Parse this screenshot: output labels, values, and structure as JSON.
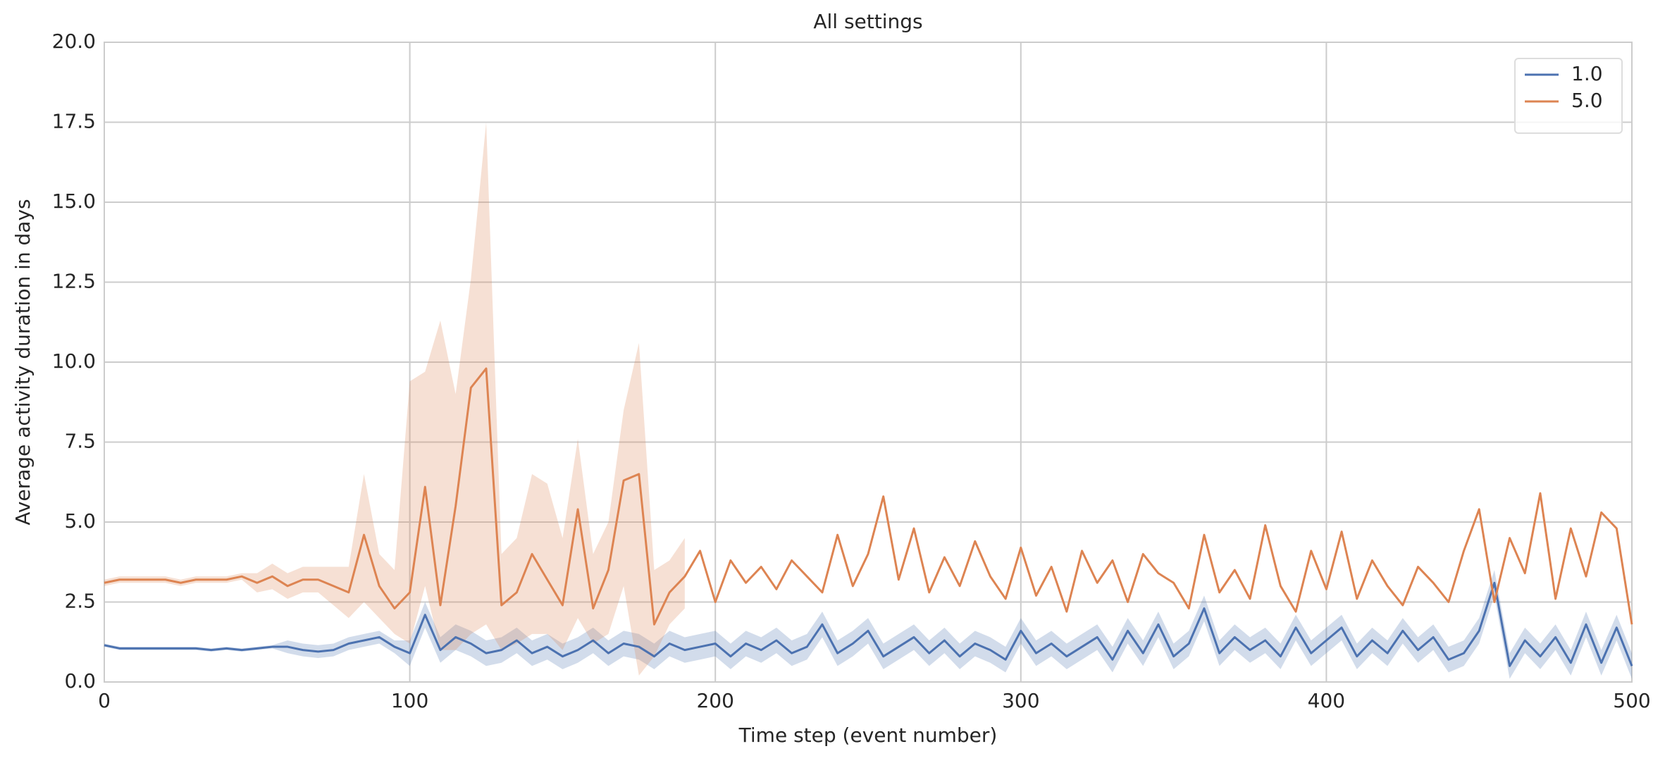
{
  "chart_data": {
    "type": "line",
    "title": "All settings",
    "x_label": "Time step (event number)",
    "y_label": "Average activity duration in days",
    "xlim": [
      0,
      500
    ],
    "xticks": [
      0,
      100,
      200,
      300,
      400,
      500
    ],
    "ylim": [
      0,
      20
    ],
    "yticks": [
      {
        "value": 0,
        "label": "0.0"
      },
      2.5,
      {
        "value": 5,
        "label": "5.0"
      },
      7.5,
      {
        "value": 10,
        "label": "10.0"
      },
      12.5,
      {
        "value": 15,
        "label": "15.0"
      },
      17.5,
      {
        "value": 20,
        "label": "20.0"
      }
    ],
    "grid": true,
    "legend": "upper right",
    "x": [
      0,
      5,
      10,
      15,
      20,
      25,
      30,
      35,
      40,
      45,
      50,
      55,
      60,
      65,
      70,
      75,
      80,
      85,
      90,
      95,
      100,
      105,
      110,
      115,
      120,
      125,
      130,
      135,
      140,
      145,
      150,
      155,
      160,
      165,
      170,
      175,
      180,
      185,
      190,
      195,
      200,
      205,
      210,
      215,
      220,
      225,
      230,
      235,
      240,
      245,
      250,
      255,
      260,
      265,
      270,
      275,
      280,
      285,
      290,
      295,
      300,
      305,
      310,
      315,
      320,
      325,
      330,
      335,
      340,
      345,
      350,
      355,
      360,
      365,
      370,
      375,
      380,
      385,
      390,
      395,
      400,
      405,
      410,
      415,
      420,
      425,
      430,
      435,
      440,
      445,
      450,
      455,
      460,
      465,
      470,
      475,
      480,
      485,
      490,
      495,
      500
    ],
    "series": [
      {
        "name": "1.0",
        "color": "#4c72b0",
        "values": [
          1.15,
          1.05,
          1.05,
          1.05,
          1.05,
          1.05,
          1.05,
          1.0,
          1.05,
          1.0,
          1.05,
          1.1,
          1.1,
          1.0,
          0.95,
          1.0,
          1.2,
          1.3,
          1.4,
          1.1,
          0.9,
          2.1,
          1.0,
          1.4,
          1.2,
          0.9,
          1.0,
          1.3,
          0.9,
          1.1,
          0.8,
          1.0,
          1.3,
          0.9,
          1.2,
          1.1,
          0.8,
          1.2,
          1.0,
          1.1,
          1.2,
          0.8,
          1.2,
          1.0,
          1.3,
          0.9,
          1.1,
          1.8,
          0.9,
          1.2,
          1.6,
          0.8,
          1.1,
          1.4,
          0.9,
          1.3,
          0.8,
          1.2,
          1.0,
          0.7,
          1.6,
          0.9,
          1.2,
          0.8,
          1.1,
          1.4,
          0.7,
          1.6,
          0.9,
          1.8,
          0.8,
          1.2,
          2.3,
          0.9,
          1.4,
          1.0,
          1.3,
          0.8,
          1.7,
          0.9,
          1.3,
          1.7,
          0.8,
          1.3,
          0.9,
          1.6,
          1.0,
          1.4,
          0.7,
          0.9,
          1.6,
          3.1,
          0.5,
          1.3,
          0.8,
          1.4,
          0.6,
          1.8,
          0.6,
          1.7,
          0.5
        ],
        "lower": [
          1.1,
          1.0,
          1.0,
          1.0,
          1.0,
          1.0,
          1.0,
          0.95,
          1.0,
          0.95,
          1.0,
          1.05,
          0.9,
          0.8,
          0.75,
          0.8,
          1.0,
          1.1,
          1.2,
          0.9,
          0.5,
          1.7,
          0.6,
          1.0,
          0.8,
          0.5,
          0.6,
          0.9,
          0.5,
          0.7,
          0.4,
          0.6,
          0.9,
          0.5,
          0.8,
          0.7,
          0.4,
          0.8,
          0.6,
          0.7,
          0.8,
          0.4,
          0.8,
          0.6,
          0.9,
          0.5,
          0.7,
          1.4,
          0.5,
          0.8,
          1.2,
          0.4,
          0.7,
          1.0,
          0.5,
          0.9,
          0.4,
          0.8,
          0.6,
          0.3,
          1.2,
          0.5,
          0.8,
          0.4,
          0.7,
          1.0,
          0.3,
          1.2,
          0.5,
          1.4,
          0.4,
          0.8,
          1.9,
          0.5,
          1.0,
          0.6,
          0.9,
          0.4,
          1.3,
          0.5,
          0.9,
          1.3,
          0.4,
          0.9,
          0.5,
          1.2,
          0.6,
          1.0,
          0.3,
          0.5,
          1.2,
          2.7,
          0.1,
          0.9,
          0.4,
          1.0,
          0.2,
          1.4,
          0.2,
          1.3,
          0.1
        ],
        "upper": [
          1.2,
          1.1,
          1.1,
          1.1,
          1.1,
          1.1,
          1.1,
          1.05,
          1.1,
          1.05,
          1.1,
          1.15,
          1.3,
          1.2,
          1.15,
          1.2,
          1.4,
          1.5,
          1.6,
          1.3,
          1.3,
          2.5,
          1.4,
          1.8,
          1.6,
          1.3,
          1.4,
          1.7,
          1.3,
          1.5,
          1.2,
          1.4,
          1.7,
          1.3,
          1.6,
          1.5,
          1.2,
          1.6,
          1.4,
          1.5,
          1.6,
          1.2,
          1.6,
          1.4,
          1.7,
          1.3,
          1.5,
          2.2,
          1.3,
          1.6,
          2.0,
          1.2,
          1.5,
          1.8,
          1.3,
          1.7,
          1.2,
          1.6,
          1.4,
          1.1,
          2.0,
          1.3,
          1.6,
          1.2,
          1.5,
          1.8,
          1.1,
          2.0,
          1.3,
          2.2,
          1.2,
          1.6,
          2.7,
          1.3,
          1.8,
          1.4,
          1.7,
          1.2,
          2.1,
          1.3,
          1.7,
          2.1,
          1.2,
          1.7,
          1.3,
          2.0,
          1.4,
          1.8,
          1.1,
          1.3,
          2.0,
          3.5,
          0.9,
          1.7,
          1.2,
          1.8,
          1.0,
          2.2,
          1.0,
          2.1,
          0.9
        ]
      },
      {
        "name": "5.0",
        "color": "#dd8452",
        "values": [
          3.1,
          3.2,
          3.2,
          3.2,
          3.2,
          3.1,
          3.2,
          3.2,
          3.2,
          3.3,
          3.1,
          3.3,
          3.0,
          3.2,
          3.2,
          3.0,
          2.8,
          4.6,
          3.0,
          2.3,
          2.8,
          6.1,
          2.4,
          5.5,
          9.2,
          9.8,
          2.4,
          2.8,
          4.0,
          3.2,
          2.4,
          5.4,
          2.3,
          3.5,
          6.3,
          6.5,
          1.8,
          2.8,
          3.3,
          4.1,
          2.5,
          3.8,
          3.1,
          3.6,
          2.9,
          3.8,
          3.3,
          2.8,
          4.6,
          3.0,
          4.0,
          5.8,
          3.2,
          4.8,
          2.8,
          3.9,
          3.0,
          4.4,
          3.3,
          2.6,
          4.2,
          2.7,
          3.6,
          2.2,
          4.1,
          3.1,
          3.8,
          2.5,
          4.0,
          3.4,
          3.1,
          2.3,
          4.6,
          2.8,
          3.5,
          2.6,
          4.9,
          3.0,
          2.2,
          4.1,
          2.9,
          4.7,
          2.6,
          3.8,
          3.0,
          2.4,
          3.6,
          3.1,
          2.5,
          4.1,
          5.4,
          2.5,
          4.5,
          3.4,
          5.9,
          2.6,
          4.8,
          3.3,
          5.3,
          4.8,
          1.8
        ],
        "lower": [
          3.0,
          3.1,
          3.1,
          3.1,
          3.1,
          3.0,
          3.1,
          3.1,
          3.1,
          3.2,
          2.8,
          2.9,
          2.6,
          2.8,
          2.8,
          2.4,
          2.0,
          2.5,
          2.0,
          1.5,
          1.2,
          3.0,
          1.0,
          1.0,
          1.5,
          1.8,
          1.0,
          1.2,
          1.5,
          1.5,
          1.0,
          2.0,
          1.2,
          1.5,
          3.0,
          0.2,
          0.8,
          1.8,
          2.3,
          null,
          null,
          null,
          null,
          null,
          null,
          null,
          null,
          null,
          null,
          null,
          null,
          null,
          null,
          null,
          null,
          null,
          null,
          null,
          null,
          null,
          null,
          null,
          null,
          null,
          null,
          null,
          null,
          null,
          null,
          null,
          null,
          null,
          null,
          null,
          null,
          null,
          null,
          null,
          null,
          null,
          null,
          null,
          null,
          null,
          null,
          null,
          null,
          null,
          null,
          null,
          null,
          null,
          null,
          null,
          null,
          null,
          null,
          null,
          null,
          null,
          null
        ],
        "upper": [
          3.2,
          3.3,
          3.3,
          3.3,
          3.3,
          3.2,
          3.3,
          3.3,
          3.3,
          3.4,
          3.4,
          3.7,
          3.4,
          3.6,
          3.6,
          3.6,
          3.6,
          6.5,
          4.0,
          3.5,
          9.4,
          9.7,
          11.3,
          9.0,
          12.6,
          17.5,
          4.0,
          4.5,
          6.5,
          6.2,
          4.5,
          7.6,
          4.0,
          5.0,
          8.5,
          10.6,
          3.5,
          3.8,
          4.5,
          null,
          null,
          null,
          null,
          null,
          null,
          null,
          null,
          null,
          null,
          null,
          null,
          null,
          null,
          null,
          null,
          null,
          null,
          null,
          null,
          null,
          null,
          null,
          null,
          null,
          null,
          null,
          null,
          null,
          null,
          null,
          null,
          null,
          null,
          null,
          null,
          null,
          null,
          null,
          null,
          null,
          null,
          null,
          null,
          null,
          null,
          null,
          null,
          null,
          null,
          null,
          null,
          null,
          null,
          null,
          null,
          null,
          null,
          null,
          null,
          null,
          null
        ]
      }
    ]
  }
}
